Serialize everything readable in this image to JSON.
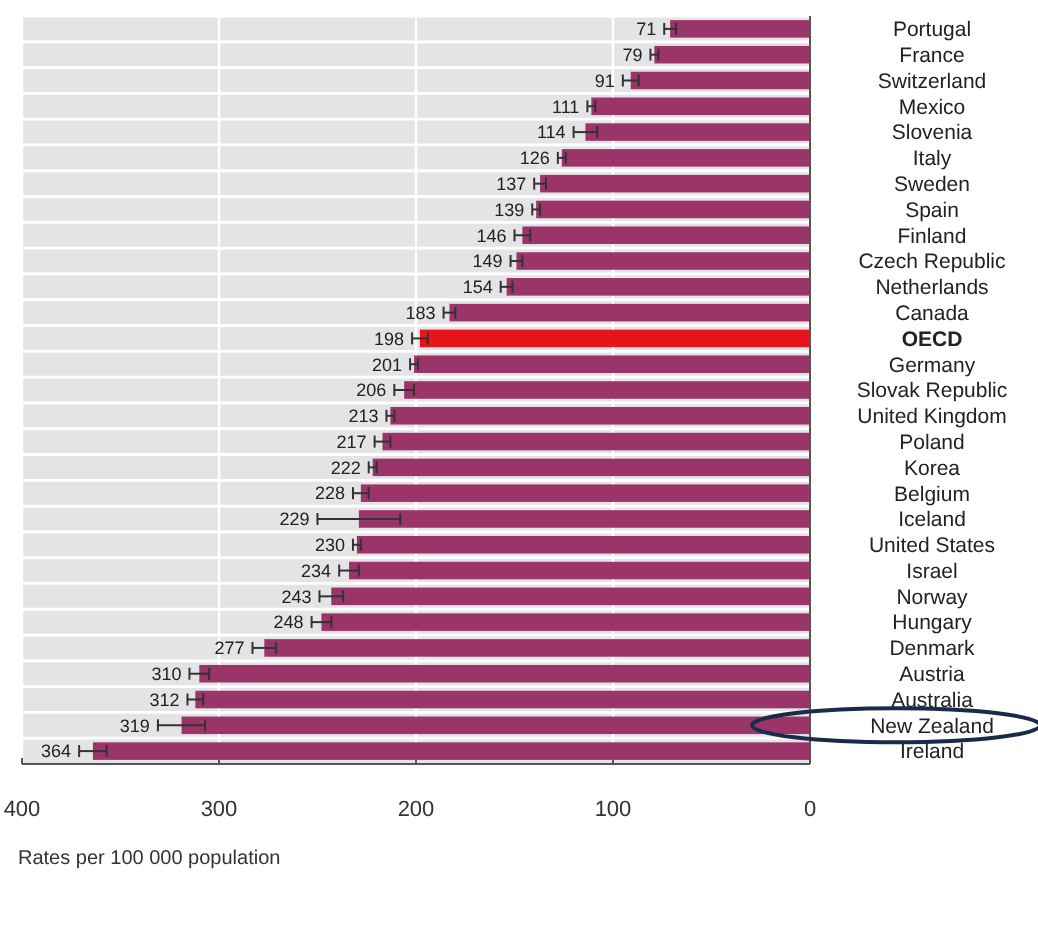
{
  "chart_data": {
    "type": "bar",
    "orientation": "horizontal",
    "xlabel": "Rates per 100 000 population",
    "categories": [
      "Portugal",
      "France",
      "Switzerland",
      "Mexico",
      "Slovenia",
      "Italy",
      "Sweden",
      "Spain",
      "Finland",
      "Czech Republic",
      "Netherlands",
      "Canada",
      "OECD",
      "Germany",
      "Slovak Republic",
      "United Kingdom",
      "Poland",
      "Korea",
      "Belgium",
      "Iceland",
      "United States",
      "Israel",
      "Norway",
      "Hungary",
      "Denmark",
      "Austria",
      "Australia",
      "New Zealand",
      "Ireland"
    ],
    "values": [
      71,
      79,
      91,
      111,
      114,
      126,
      137,
      139,
      146,
      149,
      154,
      183,
      198,
      201,
      206,
      213,
      217,
      222,
      228,
      229,
      230,
      234,
      243,
      248,
      277,
      310,
      312,
      319,
      364
    ],
    "colors": [
      "#9b3468",
      "#9b3468",
      "#9b3468",
      "#9b3468",
      "#9b3468",
      "#9b3468",
      "#9b3468",
      "#9b3468",
      "#9b3468",
      "#9b3468",
      "#9b3468",
      "#9b3468",
      "#e8141c",
      "#9b3468",
      "#9b3468",
      "#9b3468",
      "#9b3468",
      "#9b3468",
      "#9b3468",
      "#9b3468",
      "#9b3468",
      "#9b3468",
      "#9b3468",
      "#9b3468",
      "#9b3468",
      "#9b3468",
      "#9b3468",
      "#9b3468",
      "#9b3468"
    ],
    "errors": [
      3,
      2,
      4,
      2,
      6,
      2,
      3,
      2,
      4,
      3,
      3,
      3,
      4,
      2,
      5,
      2,
      4,
      2,
      4,
      [
        208,
        250
      ],
      2,
      5,
      6,
      5,
      6,
      5,
      4,
      [
        307,
        331
      ],
      [
        357,
        371
      ]
    ],
    "data_labels": true,
    "xlim": [
      400,
      0
    ],
    "xticks": [
      400,
      300,
      200,
      100,
      0
    ],
    "grid": "x"
  }
}
